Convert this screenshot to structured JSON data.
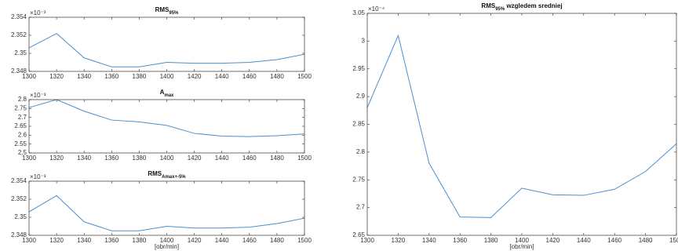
{
  "chart_data": [
    {
      "type": "line",
      "title": "RMS",
      "title_sub": "95%",
      "exponent_label": "×10⁻³",
      "x": [
        1300,
        1320,
        1340,
        1360,
        1380,
        1400,
        1420,
        1440,
        1460,
        1480,
        1500
      ],
      "values": [
        2.3506,
        2.3522,
        2.3495,
        2.3485,
        2.3485,
        2.349,
        2.3489,
        2.3489,
        2.349,
        2.3493,
        2.3499
      ],
      "color": "#4a90d0",
      "xlim": [
        1300,
        1500
      ],
      "xticks": [
        1300,
        1320,
        1340,
        1360,
        1380,
        1400,
        1420,
        1440,
        1460,
        1480,
        1500
      ],
      "ylim": [
        2.348,
        2.354
      ],
      "yticks": [
        2.348,
        2.35,
        2.352,
        2.354
      ]
    },
    {
      "type": "line",
      "title": "A",
      "title_sub": "max",
      "exponent_label": "×10⁻³",
      "x": [
        1300,
        1320,
        1340,
        1360,
        1380,
        1400,
        1420,
        1440,
        1460,
        1480,
        1500
      ],
      "values": [
        2.755,
        2.8,
        2.735,
        2.685,
        2.675,
        2.655,
        2.61,
        2.595,
        2.592,
        2.597,
        2.607
      ],
      "color": "#4a90d0",
      "xlim": [
        1300,
        1500
      ],
      "xticks": [
        1300,
        1320,
        1340,
        1360,
        1380,
        1400,
        1420,
        1440,
        1460,
        1480,
        1500
      ],
      "ylim": [
        2.5,
        2.8
      ],
      "yticks": [
        2.5,
        2.55,
        2.6,
        2.65,
        2.7,
        2.75,
        2.8
      ]
    },
    {
      "type": "line",
      "title": "RMS",
      "title_sub": "Amax+-5%",
      "exponent_label": "×10⁻³",
      "xlabel": "[obr/min]",
      "x": [
        1300,
        1320,
        1340,
        1360,
        1380,
        1400,
        1420,
        1440,
        1460,
        1480,
        1500
      ],
      "values": [
        2.3506,
        2.3524,
        2.3495,
        2.3485,
        2.3485,
        2.349,
        2.3488,
        2.3488,
        2.3489,
        2.3493,
        2.3499
      ],
      "color": "#4a90d0",
      "xlim": [
        1300,
        1500
      ],
      "xticks": [
        1300,
        1320,
        1340,
        1360,
        1380,
        1400,
        1420,
        1440,
        1460,
        1480,
        1500
      ],
      "ylim": [
        2.348,
        2.354
      ],
      "yticks": [
        2.348,
        2.35,
        2.352,
        2.354
      ]
    },
    {
      "type": "line",
      "title": "RMS",
      "title_sub": "95%",
      "title_rest": " wzgledem sredniej",
      "exponent_label": "×10⁻⁴",
      "xlabel": "[obr/min]",
      "x": [
        1300,
        1320,
        1340,
        1360,
        1380,
        1400,
        1420,
        1440,
        1460,
        1480,
        1500
      ],
      "values": [
        2.88,
        3.01,
        2.78,
        2.683,
        2.682,
        2.735,
        2.723,
        2.722,
        2.733,
        2.765,
        2.815
      ],
      "color": "#4a90d0",
      "xlim": [
        1300,
        1500
      ],
      "xticks": [
        1300,
        1320,
        1340,
        1360,
        1380,
        1400,
        1420,
        1440,
        1460,
        1480,
        1500
      ],
      "ylim": [
        2.65,
        3.05
      ],
      "yticks": [
        2.65,
        2.7,
        2.75,
        2.8,
        2.85,
        2.9,
        2.95,
        3,
        3.05
      ]
    }
  ]
}
